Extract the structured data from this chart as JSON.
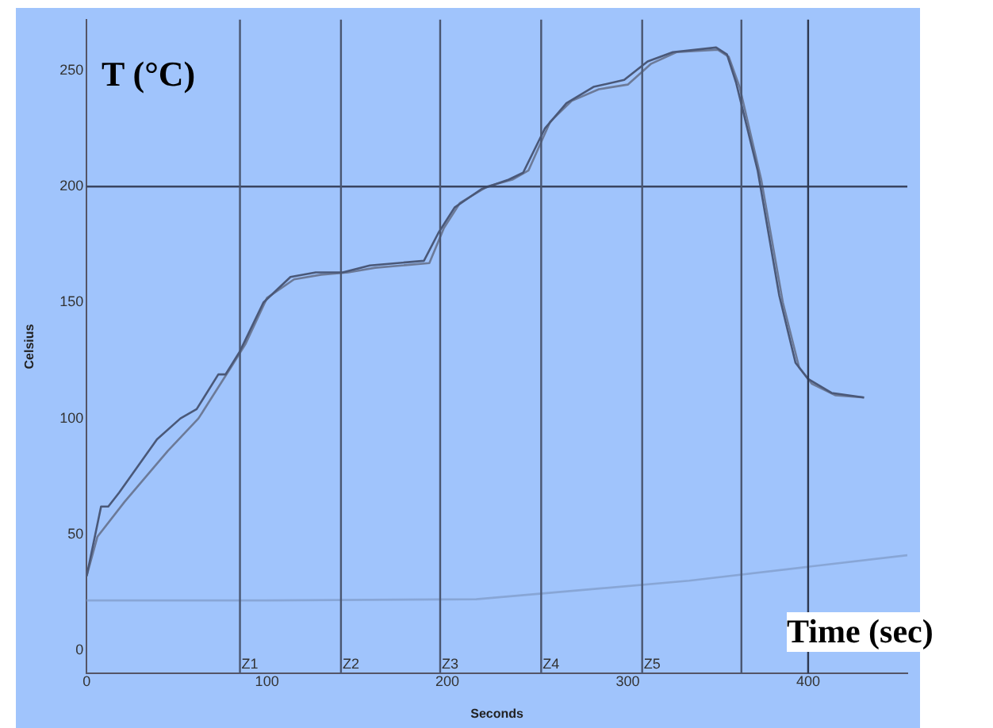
{
  "chart_data": {
    "type": "line",
    "xlabel": "Seconds",
    "ylabel": "Celsius",
    "annotations": [
      "T (°C)",
      "Time (sec)"
    ],
    "xlim": [
      0,
      455
    ],
    "ylim": [
      -10,
      272
    ],
    "xticks": [
      0,
      100,
      200,
      300,
      400
    ],
    "yticks": [
      0,
      50,
      100,
      150,
      200,
      250
    ],
    "grid": false,
    "legend": false,
    "marker": "none",
    "line_style": "solid",
    "ref_lines": [
      {
        "axis": "y",
        "value": 200,
        "label": null,
        "color": "#3a4560"
      },
      {
        "axis": "x",
        "value": 85,
        "label": "Z1",
        "color": "#4a5670"
      },
      {
        "axis": "x",
        "value": 141,
        "label": "Z2",
        "color": "#4a5670"
      },
      {
        "axis": "x",
        "value": 196,
        "label": "Z3",
        "color": "#4a5670"
      },
      {
        "axis": "x",
        "value": 252,
        "label": "Z4",
        "color": "#4a5670"
      },
      {
        "axis": "x",
        "value": 308,
        "label": "Z5",
        "color": "#4a5670"
      },
      {
        "axis": "x",
        "value": 363,
        "label": null,
        "color": "#4a5670"
      },
      {
        "axis": "x",
        "value": 400,
        "label": null,
        "color": "#2e3850"
      }
    ],
    "series": [
      {
        "color": "#4a5878",
        "x": [
          0,
          8,
          12,
          18,
          39,
          52,
          61,
          73,
          77,
          85,
          98,
          113,
          127,
          142,
          157,
          187,
          195,
          204,
          219,
          234,
          242,
          254,
          266,
          281,
          298,
          311,
          325,
          349,
          355,
          360,
          372,
          384,
          393,
          400,
          413,
          431
        ],
        "values": [
          32,
          62,
          62,
          68,
          91,
          100,
          104,
          119,
          119,
          129,
          150,
          161,
          163,
          163,
          166,
          168,
          180,
          191,
          199,
          203,
          206,
          225,
          236,
          243,
          246,
          254,
          258,
          260,
          257,
          245,
          207,
          153,
          124,
          117,
          111,
          109
        ]
      },
      {
        "color": "#6c7a98",
        "x": [
          0,
          6,
          21,
          45,
          62,
          80,
          88,
          100,
          115,
          130,
          145,
          160,
          190,
          198,
          207,
          222,
          236,
          245,
          257,
          269,
          284,
          300,
          313,
          327,
          350,
          356,
          362,
          374,
          386,
          395,
          402,
          415,
          431
        ],
        "values": [
          32,
          49,
          64,
          86,
          100,
          122,
          132,
          152,
          160,
          162,
          163,
          165,
          167,
          182,
          193,
          200,
          203,
          207,
          228,
          237,
          242,
          244,
          253,
          258,
          259,
          256,
          243,
          203,
          150,
          122,
          115,
          110,
          109
        ]
      },
      {
        "color": "#88a6d6",
        "x": [
          0,
          100,
          216,
          334,
          455
        ],
        "values": [
          21.5,
          21.5,
          22,
          30,
          41
        ]
      }
    ]
  }
}
